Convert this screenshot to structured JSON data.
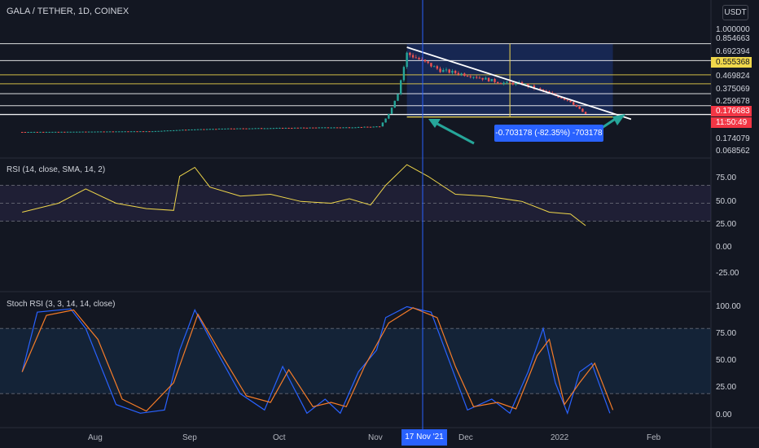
{
  "header": {
    "title": "GALA / TETHER, 1D, COINEX",
    "currency": "USDT"
  },
  "measure_label": "-0.703178 (-82.35%) -703178",
  "rsi_label": "RSI (14, close, SMA, 14, 2)",
  "stoch_label": "Stoch RSI (3, 3, 14, 14, close)",
  "price_axis": [
    "1.000000",
    "0.854663",
    "0.692394",
    "0.469824",
    "0.375069",
    "0.259678",
    "0.174079",
    "0.068562"
  ],
  "price_boxes": [
    {
      "value": "0.555368",
      "bg": "#f0d74b",
      "color": "#131722"
    },
    {
      "value": "0.176683",
      "bg": "#f23645",
      "color": "#ffffff"
    },
    {
      "value": "11:50:49",
      "bg": "#f23645",
      "color": "#ffffff"
    }
  ],
  "rsi_axis": [
    "75.00",
    "50.00",
    "25.00",
    "0.00",
    "-25.00"
  ],
  "stoch_axis": [
    "100.00",
    "75.00",
    "50.00",
    "25.00",
    "0.00"
  ],
  "time_axis": [
    "Aug",
    "Sep",
    "Oct",
    "Nov",
    "Dec",
    "2022",
    "Feb"
  ],
  "crosshair_date": "17 Nov '21",
  "colors": {
    "up": "#26a69a",
    "down": "#ef5350",
    "rsi": "#f0d74b",
    "stoch_k": "#2962ff",
    "stoch_d": "#f77c28",
    "background": "#131722"
  },
  "chart_data": [
    {
      "type": "candlestick",
      "title": "GALA / TETHER, 1D, COINEX",
      "x_range": [
        "2021-07-15",
        "2022-02-10"
      ],
      "ylim": [
        0.0,
        1.0
      ],
      "horizontal_levels": [
        0.854663,
        0.692394,
        0.555368,
        0.469824,
        0.375069,
        0.259678,
        0.176683,
        0.174079
      ],
      "close_points": [
        {
          "x": "2021-07-20",
          "y": 0.008
        },
        {
          "x": "2021-08-01",
          "y": 0.009
        },
        {
          "x": "2021-08-15",
          "y": 0.012
        },
        {
          "x": "2021-09-01",
          "y": 0.015
        },
        {
          "x": "2021-09-12",
          "y": 0.03
        },
        {
          "x": "2021-09-25",
          "y": 0.04
        },
        {
          "x": "2021-10-10",
          "y": 0.045
        },
        {
          "x": "2021-10-25",
          "y": 0.05
        },
        {
          "x": "2021-11-05",
          "y": 0.052
        },
        {
          "x": "2021-11-15",
          "y": 0.06
        },
        {
          "x": "2021-11-18",
          "y": 0.18
        },
        {
          "x": "2021-11-21",
          "y": 0.38
        },
        {
          "x": "2021-11-24",
          "y": 0.76
        },
        {
          "x": "2021-11-27",
          "y": 0.72
        },
        {
          "x": "2021-12-05",
          "y": 0.6
        },
        {
          "x": "2021-12-15",
          "y": 0.55
        },
        {
          "x": "2021-12-25",
          "y": 0.48
        },
        {
          "x": "2022-01-01",
          "y": 0.47
        },
        {
          "x": "2022-01-10",
          "y": 0.38
        },
        {
          "x": "2022-01-17",
          "y": 0.3
        },
        {
          "x": "2022-01-21",
          "y": 0.2
        },
        {
          "x": "2022-01-22",
          "y": 0.177
        }
      ]
    },
    {
      "type": "line",
      "title": "RSI (14, close, SMA, 14, 2)",
      "ylim": [
        -40,
        100
      ],
      "bands": [
        70,
        50,
        30
      ],
      "series": [
        {
          "name": "RSI",
          "values": [
            {
              "x": "2021-07-20",
              "y": 40
            },
            {
              "x": "2021-08-01",
              "y": 50
            },
            {
              "x": "2021-08-10",
              "y": 66
            },
            {
              "x": "2021-08-20",
              "y": 50
            },
            {
              "x": "2021-08-30",
              "y": 44
            },
            {
              "x": "2021-09-08",
              "y": 42
            },
            {
              "x": "2021-09-10",
              "y": 80
            },
            {
              "x": "2021-09-15",
              "y": 90
            },
            {
              "x": "2021-09-20",
              "y": 68
            },
            {
              "x": "2021-09-30",
              "y": 58
            },
            {
              "x": "2021-10-10",
              "y": 60
            },
            {
              "x": "2021-10-20",
              "y": 52
            },
            {
              "x": "2021-10-30",
              "y": 50
            },
            {
              "x": "2021-11-05",
              "y": 55
            },
            {
              "x": "2021-11-12",
              "y": 48
            },
            {
              "x": "2021-11-17",
              "y": 70
            },
            {
              "x": "2021-11-24",
              "y": 93
            },
            {
              "x": "2021-12-01",
              "y": 80
            },
            {
              "x": "2021-12-10",
              "y": 60
            },
            {
              "x": "2021-12-20",
              "y": 58
            },
            {
              "x": "2022-01-01",
              "y": 52
            },
            {
              "x": "2022-01-10",
              "y": 40
            },
            {
              "x": "2022-01-17",
              "y": 38
            },
            {
              "x": "2022-01-22",
              "y": 25
            }
          ]
        }
      ]
    },
    {
      "type": "line",
      "title": "Stoch RSI (3, 3, 14, 14, close)",
      "ylim": [
        -5,
        105
      ],
      "bands": [
        80,
        20
      ],
      "series": [
        {
          "name": "K",
          "values": [
            {
              "x": "2021-07-20",
              "y": 40
            },
            {
              "x": "2021-07-25",
              "y": 95
            },
            {
              "x": "2021-08-05",
              "y": 98
            },
            {
              "x": "2021-08-10",
              "y": 80
            },
            {
              "x": "2021-08-20",
              "y": 10
            },
            {
              "x": "2021-08-28",
              "y": 2
            },
            {
              "x": "2021-09-05",
              "y": 5
            },
            {
              "x": "2021-09-10",
              "y": 60
            },
            {
              "x": "2021-09-15",
              "y": 97
            },
            {
              "x": "2021-09-22",
              "y": 60
            },
            {
              "x": "2021-09-30",
              "y": 20
            },
            {
              "x": "2021-10-08",
              "y": 5
            },
            {
              "x": "2021-10-14",
              "y": 45
            },
            {
              "x": "2021-10-22",
              "y": 2
            },
            {
              "x": "2021-10-28",
              "y": 15
            },
            {
              "x": "2021-11-02",
              "y": 2
            },
            {
              "x": "2021-11-08",
              "y": 40
            },
            {
              "x": "2021-11-14",
              "y": 60
            },
            {
              "x": "2021-11-17",
              "y": 90
            },
            {
              "x": "2021-11-24",
              "y": 100
            },
            {
              "x": "2021-12-02",
              "y": 95
            },
            {
              "x": "2021-12-08",
              "y": 50
            },
            {
              "x": "2021-12-14",
              "y": 5
            },
            {
              "x": "2021-12-22",
              "y": 15
            },
            {
              "x": "2021-12-28",
              "y": 2
            },
            {
              "x": "2022-01-03",
              "y": 40
            },
            {
              "x": "2022-01-08",
              "y": 80
            },
            {
              "x": "2022-01-12",
              "y": 30
            },
            {
              "x": "2022-01-16",
              "y": 2
            },
            {
              "x": "2022-01-20",
              "y": 40
            },
            {
              "x": "2022-01-24",
              "y": 48
            },
            {
              "x": "2022-01-30",
              "y": 2
            }
          ]
        },
        {
          "name": "D",
          "values": [
            {
              "x": "2021-07-20",
              "y": 40
            },
            {
              "x": "2021-07-28",
              "y": 92
            },
            {
              "x": "2021-08-06",
              "y": 97
            },
            {
              "x": "2021-08-14",
              "y": 70
            },
            {
              "x": "2021-08-22",
              "y": 15
            },
            {
              "x": "2021-08-30",
              "y": 4
            },
            {
              "x": "2021-09-08",
              "y": 30
            },
            {
              "x": "2021-09-16",
              "y": 93
            },
            {
              "x": "2021-09-24",
              "y": 55
            },
            {
              "x": "2021-10-02",
              "y": 18
            },
            {
              "x": "2021-10-10",
              "y": 12
            },
            {
              "x": "2021-10-16",
              "y": 42
            },
            {
              "x": "2021-10-24",
              "y": 8
            },
            {
              "x": "2021-10-30",
              "y": 12
            },
            {
              "x": "2021-11-04",
              "y": 8
            },
            {
              "x": "2021-11-10",
              "y": 45
            },
            {
              "x": "2021-11-18",
              "y": 85
            },
            {
              "x": "2021-11-26",
              "y": 99
            },
            {
              "x": "2021-12-04",
              "y": 90
            },
            {
              "x": "2021-12-10",
              "y": 45
            },
            {
              "x": "2021-12-16",
              "y": 8
            },
            {
              "x": "2021-12-24",
              "y": 12
            },
            {
              "x": "2021-12-30",
              "y": 6
            },
            {
              "x": "2022-01-06",
              "y": 55
            },
            {
              "x": "2022-01-10",
              "y": 70
            },
            {
              "x": "2022-01-15",
              "y": 10
            },
            {
              "x": "2022-01-20",
              "y": 30
            },
            {
              "x": "2022-01-25",
              "y": 48
            },
            {
              "x": "2022-01-31",
              "y": 5
            }
          ]
        }
      ]
    }
  ]
}
